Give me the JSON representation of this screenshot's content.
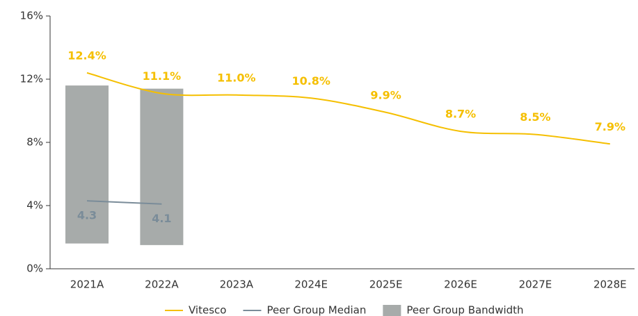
{
  "chart_data": {
    "type": "line",
    "categories": [
      "2021A",
      "2022A",
      "2023A",
      "2024E",
      "2025E",
      "2026E",
      "2027E",
      "2028E"
    ],
    "series": [
      {
        "name": "Vitesco",
        "color": "#f5bf00",
        "values": [
          12.4,
          11.1,
          11.0,
          10.8,
          9.9,
          8.7,
          8.5,
          7.9
        ],
        "value_labels": [
          "12.4%",
          "11.1%",
          "11.0%",
          "10.8%",
          "9.9%",
          "8.7%",
          "8.5%",
          "7.9%"
        ]
      },
      {
        "name": "Peer Group Median",
        "color": "#7a8c99",
        "values": [
          4.3,
          4.1,
          null,
          null,
          null,
          null,
          null,
          null
        ]
      },
      {
        "name": "Peer Group Bandwidth",
        "color": "#a7abaa",
        "low": [
          1.6,
          1.5,
          null,
          null,
          null,
          null,
          null,
          null
        ],
        "high": [
          11.6,
          11.4,
          null,
          null,
          null,
          null,
          null,
          null
        ]
      }
    ],
    "ylim": [
      0,
      16
    ],
    "yticks": [
      {
        "value": 0,
        "label": "0%"
      },
      {
        "value": 4,
        "label": "4%"
      },
      {
        "value": 8,
        "label": "8%"
      },
      {
        "value": 12,
        "label": "12%"
      },
      {
        "value": 16,
        "label": "16%"
      }
    ]
  }
}
